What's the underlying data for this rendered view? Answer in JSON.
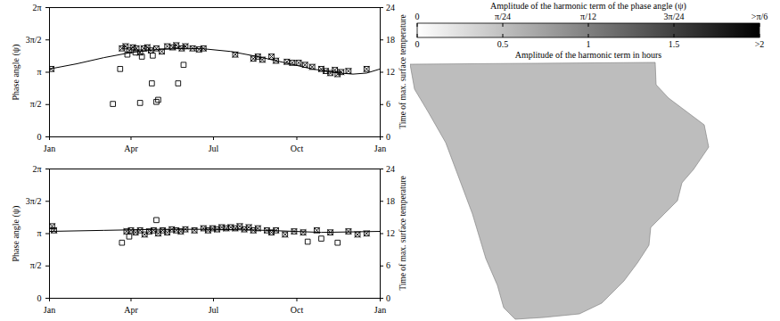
{
  "chart_data": [
    {
      "type": "scatter",
      "ylabel": "Phase angle (ψ)",
      "y2label": "Time of max. surface temperature",
      "xlim": [
        0,
        365
      ],
      "xticks": [
        {
          "value": 0,
          "label": "Jan"
        },
        {
          "value": 90,
          "label": "Apr"
        },
        {
          "value": 181,
          "label": "Jul"
        },
        {
          "value": 273,
          "label": "Oct"
        },
        {
          "value": 365,
          "label": "Jan"
        }
      ],
      "ylim": [
        0,
        6.2832
      ],
      "yticks": [
        0,
        {
          "value": 1.5708,
          "label": "π/2"
        },
        {
          "value": 3.1416,
          "label": "π"
        },
        {
          "value": 4.7124,
          "label": "3π/2"
        },
        {
          "value": 6.2832,
          "label": "2π"
        }
      ],
      "y2lim": [
        0,
        24
      ],
      "y2ticks": [
        0,
        6,
        12,
        18,
        24
      ],
      "series": [
        {
          "type": "line",
          "color": "#000000",
          "line_style": "solid",
          "x": [
            0,
            30,
            60,
            90,
            120,
            150,
            170,
            200,
            230,
            260,
            290,
            320,
            335,
            350,
            365
          ],
          "values": [
            3.3,
            3.55,
            3.85,
            4.1,
            4.25,
            4.3,
            4.28,
            4.15,
            3.9,
            3.6,
            3.3,
            3.1,
            3.05,
            3.1,
            3.3
          ]
        },
        {
          "type": "scatter",
          "color": "#000000",
          "marker": "square",
          "x": [
            70,
            78,
            100,
            113,
            118,
            120,
            142,
            148,
            86,
            95,
            102,
            114
          ],
          "values": [
            1.6,
            3.3,
            1.65,
            2.6,
            1.7,
            1.8,
            2.6,
            3.5,
            4.0,
            4.1,
            3.9,
            3.95
          ]
        },
        {
          "type": "scatter",
          "color": "#000000",
          "marker": "crossed_square",
          "x": [
            2,
            80,
            84,
            88,
            92,
            96,
            100,
            104,
            108,
            112,
            118,
            124,
            130,
            136,
            140,
            146,
            150,
            158,
            165,
            170,
            205,
            225,
            230,
            235,
            245,
            250,
            262,
            268,
            275,
            282,
            290,
            300,
            305,
            310,
            315,
            318,
            322,
            330,
            350
          ],
          "values": [
            3.3,
            4.3,
            4.4,
            4.2,
            4.35,
            4.3,
            4.1,
            4.3,
            4.35,
            4.2,
            4.3,
            4.15,
            4.4,
            4.35,
            4.45,
            4.3,
            4.4,
            4.3,
            4.25,
            4.3,
            4.0,
            3.8,
            3.9,
            3.75,
            3.9,
            3.7,
            3.65,
            3.6,
            3.6,
            3.5,
            3.4,
            3.3,
            3.2,
            3.1,
            3.25,
            3.05,
            3.15,
            3.2,
            3.3
          ]
        }
      ]
    },
    {
      "type": "scatter",
      "ylabel": "Phase angle (ψ)",
      "y2label": "Time of max. surface temperature",
      "xlim": [
        0,
        365
      ],
      "xticks": [
        {
          "value": 0,
          "label": "Jan"
        },
        {
          "value": 90,
          "label": "Apr"
        },
        {
          "value": 181,
          "label": "Jul"
        },
        {
          "value": 273,
          "label": "Oct"
        },
        {
          "value": 365,
          "label": "Jan"
        }
      ],
      "ylim": [
        0,
        6.2832
      ],
      "yticks": [
        0,
        {
          "value": 1.5708,
          "label": "π/2"
        },
        {
          "value": 3.1416,
          "label": "π"
        },
        {
          "value": 4.7124,
          "label": "3π/2"
        },
        {
          "value": 6.2832,
          "label": "2π"
        }
      ],
      "y2lim": [
        0,
        24
      ],
      "y2ticks": [
        0,
        6,
        12,
        18,
        24
      ],
      "series": [
        {
          "type": "line",
          "color": "#000000",
          "line_style": "solid",
          "x": [
            0,
            60,
            120,
            180,
            240,
            300,
            365
          ],
          "values": [
            3.25,
            3.3,
            3.35,
            3.35,
            3.3,
            3.2,
            3.25
          ]
        },
        {
          "type": "scatter",
          "color": "#000000",
          "marker": "square",
          "x": [
            80,
            88,
            118,
            285,
            300,
            318
          ],
          "values": [
            2.7,
            3.0,
            3.8,
            2.75,
            2.9,
            2.7
          ]
        },
        {
          "type": "scatter",
          "color": "#000000",
          "marker": "crossed_square",
          "x": [
            3,
            5,
            85,
            90,
            95,
            100,
            105,
            110,
            115,
            120,
            125,
            130,
            135,
            140,
            145,
            150,
            160,
            170,
            175,
            180,
            185,
            190,
            195,
            200,
            205,
            210,
            215,
            220,
            225,
            230,
            240,
            245,
            250,
            260,
            270,
            280,
            295,
            310,
            330,
            340,
            350
          ],
          "values": [
            3.5,
            3.3,
            3.25,
            3.3,
            3.2,
            3.3,
            3.1,
            3.25,
            3.3,
            3.15,
            3.3,
            3.2,
            3.35,
            3.3,
            3.25,
            3.35,
            3.3,
            3.4,
            3.3,
            3.4,
            3.35,
            3.45,
            3.4,
            3.45,
            3.4,
            3.5,
            3.35,
            3.45,
            3.3,
            3.4,
            3.3,
            3.2,
            3.3,
            3.1,
            3.25,
            3.2,
            3.3,
            3.2,
            3.25,
            3.1,
            3.15
          ]
        }
      ]
    },
    {
      "type": "heatmap",
      "colorbar": {
        "title": "Amplitude of the harmonic term of the phase angle (ψ)",
        "lim": [
          0,
          0.5236
        ],
        "ticks": [
          0,
          {
            "value": 0.1309,
            "label": "π/24"
          },
          {
            "value": 0.2618,
            "label": "π/12"
          },
          {
            "value": 0.3927,
            "label": "3π/24"
          },
          {
            "value": 0.5236,
            "label": ">π/6"
          }
        ],
        "hours_title": "Amplitude of the harmonic term in hours",
        "hours_lim": [
          0,
          2
        ],
        "hours_ticks": [
          0,
          0.5,
          1,
          1.5,
          {
            "value": 2,
            "label": ">2"
          }
        ],
        "colors": [
          "#ffffff",
          "#000000"
        ]
      }
    }
  ]
}
